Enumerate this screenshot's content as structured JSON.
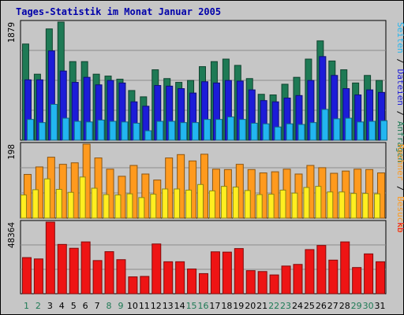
{
  "title": "Tages-Statistik im Monat Januar 2005",
  "colors": {
    "outer_bg": "#c6c6c6",
    "plot_bg": "#c6c6c6",
    "grid": "#8c8c8c",
    "border": "#000000",
    "title": "#0000aa",
    "anfragen": "#1e7a55",
    "dateien": "#1c1cd8",
    "seiten": "#22b6f0",
    "besuche": "#ff9a1e",
    "rechner": "#ffee20",
    "kb": "#ee1414",
    "tick_weekday": "#000000",
    "tick_weekend": "#1e7a55"
  },
  "chart_data": [
    {
      "type": "bar",
      "panel": "top",
      "ytick_label": "1879",
      "side_labels": [
        {
          "text": "Seiten",
          "color": "#22b6f0"
        },
        {
          "text": " / ",
          "color": "#000000"
        },
        {
          "text": "Dateien",
          "color": "#1c1cd8"
        },
        {
          "text": " / ",
          "color": "#000000"
        },
        {
          "text": "Anfragen",
          "color": "#1e7a55"
        }
      ],
      "ylim": [
        0,
        1879
      ],
      "series": [
        {
          "name": "Anfragen",
          "color": "#1e7a55",
          "values": [
            1530,
            1050,
            1770,
            1879,
            1250,
            1250,
            1050,
            1020,
            970,
            790,
            690,
            1120,
            980,
            920,
            950,
            1170,
            1250,
            1290,
            1190,
            980,
            730,
            720,
            890,
            1000,
            1290,
            1580,
            1260,
            1120,
            910,
            1030,
            950
          ]
        },
        {
          "name": "Dateien",
          "color": "#1c1cd8",
          "values": [
            960,
            960,
            1420,
            1100,
            920,
            1000,
            880,
            950,
            910,
            610,
            540,
            870,
            860,
            820,
            750,
            930,
            910,
            950,
            940,
            800,
            630,
            610,
            670,
            710,
            950,
            1330,
            1030,
            820,
            720,
            800,
            760
          ]
        },
        {
          "name": "Seiten",
          "color": "#22b6f0",
          "values": [
            330,
            280,
            570,
            350,
            300,
            290,
            320,
            300,
            290,
            270,
            150,
            300,
            300,
            280,
            280,
            330,
            330,
            370,
            330,
            270,
            260,
            210,
            260,
            250,
            280,
            490,
            340,
            350,
            290,
            300,
            310
          ]
        }
      ]
    },
    {
      "type": "bar",
      "panel": "middle",
      "ytick_label": "198",
      "side_labels": [
        {
          "text": "Rechner",
          "color": "#ff9a1e"
        },
        {
          "text": " / ",
          "color": "#000000"
        },
        {
          "text": "Besuche",
          "color": "#ff9a1e"
        }
      ],
      "ylim": [
        0,
        198
      ],
      "series": [
        {
          "name": "Besuche",
          "color": "#ff9a1e",
          "values": [
            117,
            137,
            163,
            144,
            148,
            198,
            161,
            131,
            112,
            141,
            118,
            102,
            161,
            170,
            153,
            171,
            131,
            130,
            144,
            130,
            121,
            124,
            131,
            118,
            141,
            135,
            120,
            126,
            131,
            130,
            121
          ]
        },
        {
          "name": "Rechner",
          "color": "#ffee20",
          "values": [
            62,
            76,
            105,
            77,
            69,
            110,
            80,
            63,
            62,
            65,
            55,
            64,
            78,
            78,
            75,
            90,
            73,
            85,
            83,
            74,
            63,
            64,
            75,
            67,
            82,
            85,
            70,
            70,
            66,
            66,
            65
          ]
        }
      ]
    },
    {
      "type": "bar",
      "panel": "bottom",
      "ytick_label": "48364",
      "side_labels": [
        {
          "text": "kb",
          "color": "#ee1414"
        }
      ],
      "ylim": [
        0,
        48364
      ],
      "series": [
        {
          "name": "kB",
          "color": "#ee1414",
          "values": [
            24400,
            23500,
            48364,
            33300,
            30700,
            35000,
            22400,
            28400,
            23000,
            11400,
            11700,
            33600,
            21600,
            21600,
            16700,
            13600,
            28300,
            28100,
            30500,
            15600,
            15000,
            12700,
            18700,
            19800,
            29800,
            32600,
            22700,
            35000,
            17700,
            26900,
            21600
          ]
        }
      ]
    }
  ],
  "x_ticks": [
    "1",
    "2",
    "3",
    "4",
    "5",
    "6",
    "7",
    "8",
    "9",
    "10",
    "11",
    "12",
    "13",
    "14",
    "15",
    "16",
    "17",
    "18",
    "19",
    "20",
    "21",
    "22",
    "23",
    "24",
    "25",
    "26",
    "27",
    "28",
    "29",
    "30",
    "31"
  ],
  "weekend_days": [
    1,
    2,
    8,
    9,
    15,
    16,
    22,
    23,
    29,
    30
  ]
}
